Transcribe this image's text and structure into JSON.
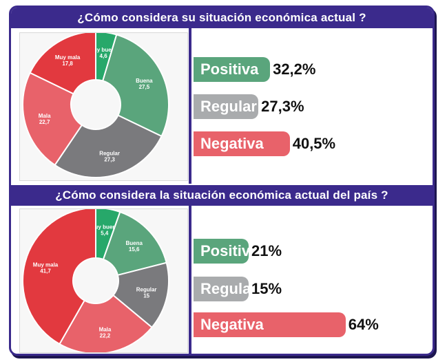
{
  "colors": {
    "frame": "#3b2a8c",
    "muy_buena": "#27a86a",
    "buena": "#5aa57c",
    "regular": "#7a7a7d",
    "mala": "#e8626a",
    "muy_mala": "#e2393f",
    "positiva_bar": "#5aa57c",
    "regular_bar": "#a9abad",
    "negativa_bar": "#e8626a"
  },
  "chart_data": [
    {
      "type": "pie",
      "title": "¿Cómo considera su situación económica actual ?",
      "slices": [
        {
          "label": "Muy buena",
          "value": 4.6,
          "display": "4,6",
          "color": "#27a86a"
        },
        {
          "label": "Buena",
          "value": 27.5,
          "display": "27,5",
          "color": "#5aa57c"
        },
        {
          "label": "Regular",
          "value": 27.3,
          "display": "27,3",
          "color": "#7a7a7d"
        },
        {
          "label": "Mala",
          "value": 22.7,
          "display": "22,7",
          "color": "#e8626a"
        },
        {
          "label": "Muy mala",
          "value": 17.8,
          "display": "17,8",
          "color": "#e2393f"
        }
      ],
      "bars": [
        {
          "label": "Positiva",
          "value": 32.2,
          "display": "32,2%",
          "color": "#5aa57c"
        },
        {
          "label": "Regular",
          "value": 27.3,
          "display": "27,3%",
          "color": "#a9abad"
        },
        {
          "label": "Negativa",
          "value": 40.5,
          "display": "40,5%",
          "color": "#e8626a"
        }
      ]
    },
    {
      "type": "pie",
      "title": "¿Cómo considera la situación económica actual del país ?",
      "slices": [
        {
          "label": "Muy buena",
          "value": 5.4,
          "display": "5,4",
          "color": "#27a86a"
        },
        {
          "label": "Buena",
          "value": 15.6,
          "display": "15,6",
          "color": "#5aa57c"
        },
        {
          "label": "Regular",
          "value": 15,
          "display": "15",
          "color": "#7a7a7d"
        },
        {
          "label": "Mala",
          "value": 22.2,
          "display": "22,2",
          "color": "#e8626a"
        },
        {
          "label": "Muy mala",
          "value": 41.7,
          "display": "41,7",
          "color": "#e2393f"
        }
      ],
      "bars": [
        {
          "label": "Positiva",
          "value": 21,
          "display": "21%",
          "color": "#5aa57c"
        },
        {
          "label": "Regular",
          "value": 15,
          "display": "15%",
          "color": "#a9abad"
        },
        {
          "label": "Negativa",
          "value": 64,
          "display": "64%",
          "color": "#e8626a"
        }
      ]
    }
  ]
}
